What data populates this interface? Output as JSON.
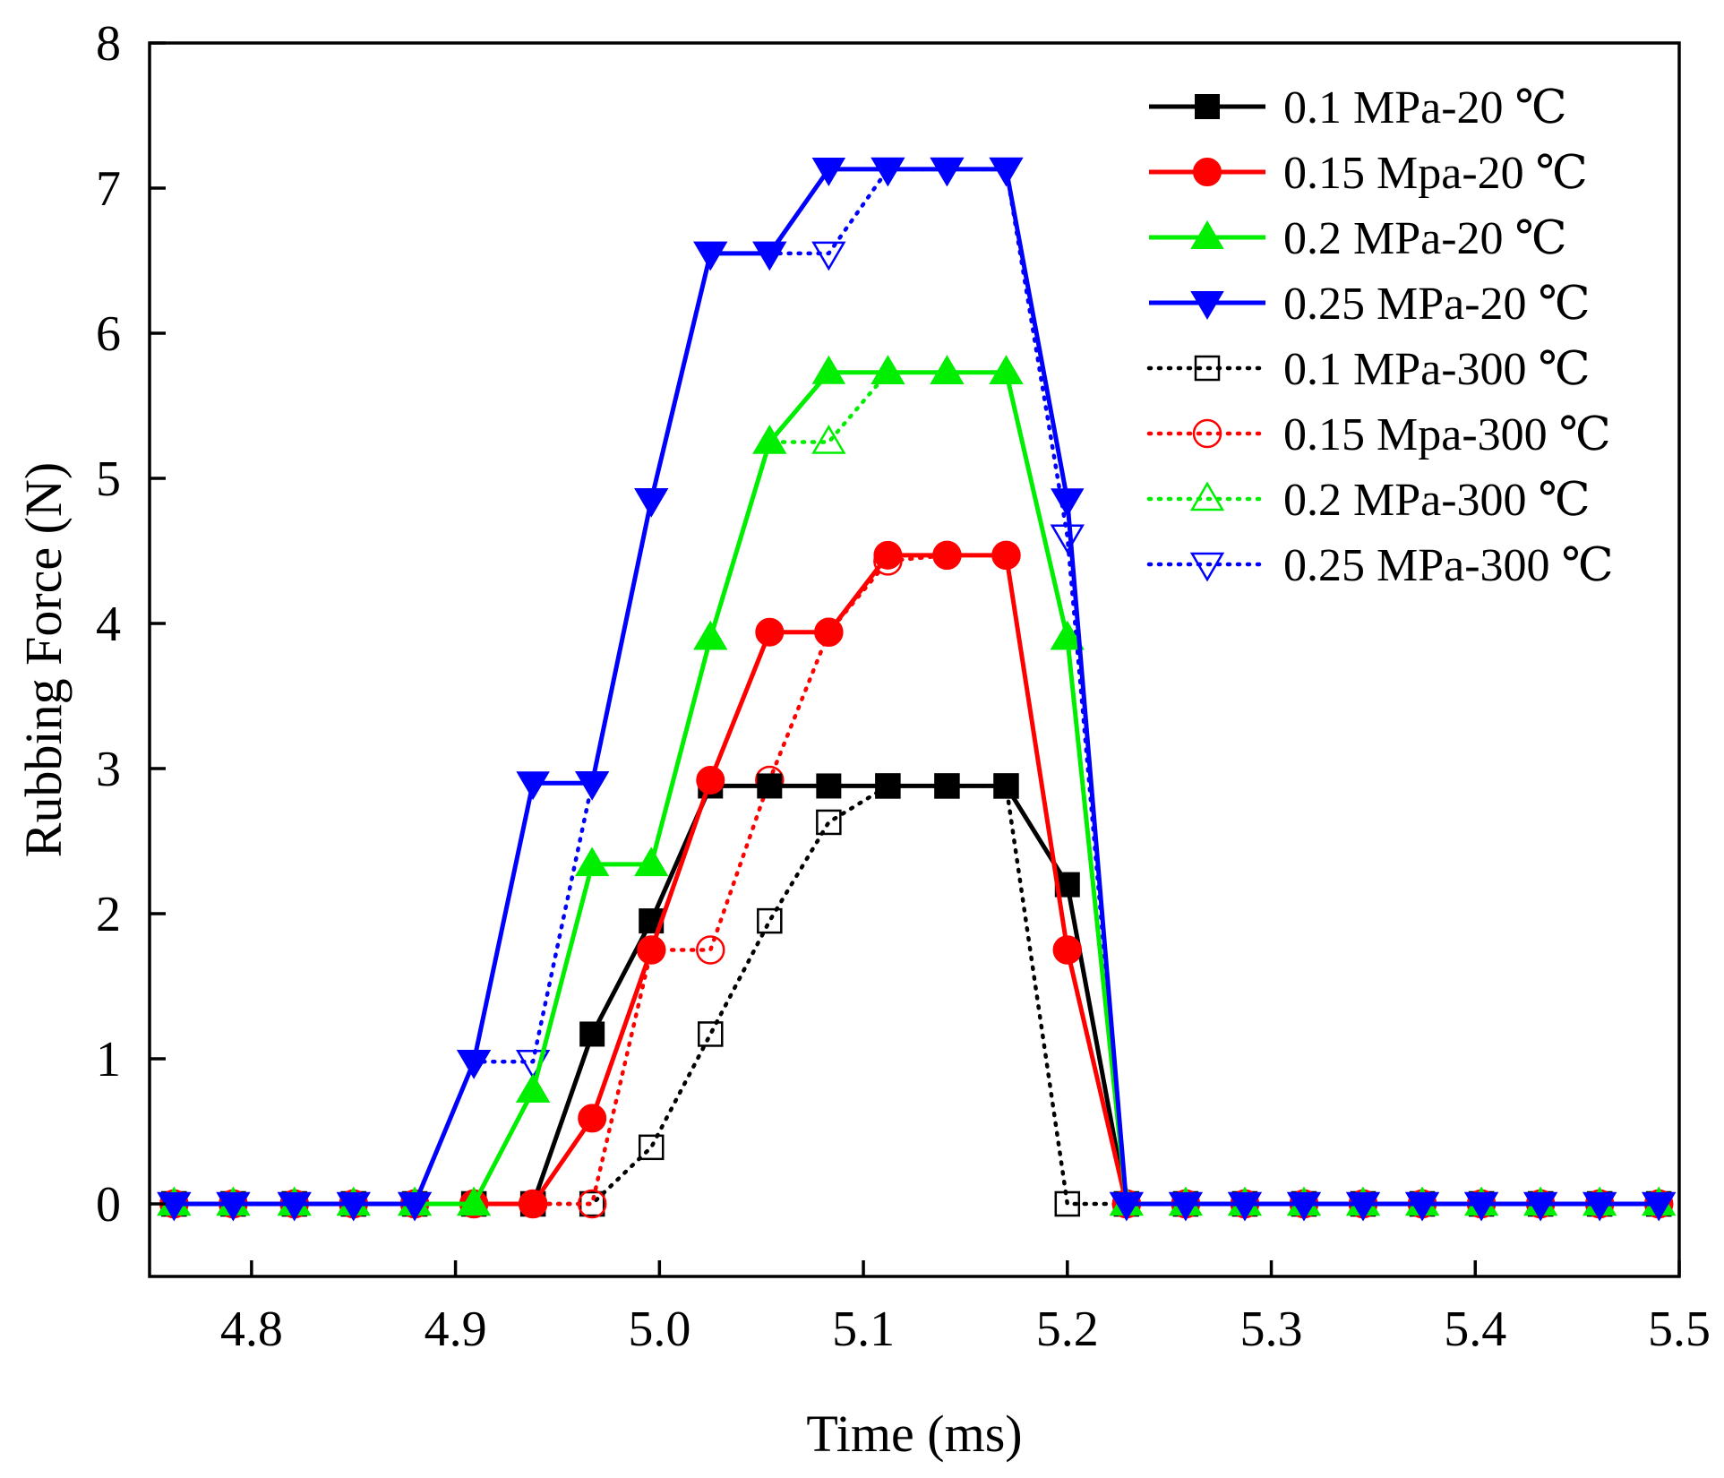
{
  "chart_data": {
    "type": "line",
    "title": "",
    "xlabel": "Time (ms)",
    "ylabel": "Rubbing Force (N)",
    "xlim": [
      4.75,
      5.5
    ],
    "ylim": [
      -0.5,
      8
    ],
    "xticks": [
      4.8,
      4.9,
      5.0,
      5.1,
      5.2,
      5.3,
      5.4,
      5.5
    ],
    "xtick_labels": [
      "4.8",
      "4.9",
      "5.0",
      "5.1",
      "5.2",
      "5.3",
      "5.4",
      "5.5"
    ],
    "yticks": [
      0,
      1,
      2,
      3,
      4,
      5,
      6,
      7,
      8
    ],
    "ytick_labels": [
      "0",
      "1",
      "2",
      "3",
      "4",
      "5",
      "6",
      "7",
      "8"
    ],
    "grid": false,
    "legend_position": "top-right",
    "x": [
      4.762,
      4.791,
      4.821,
      4.85,
      4.88,
      4.909,
      4.938,
      4.967,
      4.996,
      5.025,
      5.054,
      5.083,
      5.112,
      5.141,
      5.17,
      5.2,
      5.229,
      5.258,
      5.287,
      5.316,
      5.345,
      5.374,
      5.403,
      5.432,
      5.461,
      5.49
    ],
    "series": [
      {
        "name": "0.1 MPa-20 ℃",
        "color": "#000000",
        "style": "solid",
        "marker": "square",
        "filled": true,
        "values": [
          0,
          0,
          0,
          0,
          0,
          0,
          0,
          1.17,
          1.95,
          2.88,
          2.88,
          2.88,
          2.88,
          2.88,
          2.88,
          2.2,
          0,
          0,
          0,
          0,
          0,
          0,
          0,
          0,
          0,
          0
        ]
      },
      {
        "name": "0.15 Mpa-20 ℃",
        "color": "#ff0000",
        "style": "solid",
        "marker": "circle",
        "filled": true,
        "values": [
          0,
          0,
          0,
          0,
          0,
          0,
          0,
          0.59,
          1.75,
          2.92,
          3.94,
          3.94,
          4.47,
          4.47,
          4.47,
          1.75,
          0,
          0,
          0,
          0,
          0,
          0,
          0,
          0,
          0,
          0
        ]
      },
      {
        "name": "0.2 MPa-20 ℃",
        "color": "#00ee00",
        "style": "solid",
        "marker": "triangle-up",
        "filled": true,
        "values": [
          0,
          0,
          0,
          0,
          0,
          0,
          0.78,
          2.34,
          2.34,
          3.9,
          5.25,
          5.73,
          5.73,
          5.73,
          5.73,
          3.9,
          0,
          0,
          0,
          0,
          0,
          0,
          0,
          0,
          0,
          0
        ]
      },
      {
        "name": "0.25 MPa-20 ℃",
        "color": "#0000ff",
        "style": "solid",
        "marker": "triangle-down",
        "filled": true,
        "values": [
          0,
          0,
          0,
          0,
          0,
          0.98,
          2.9,
          2.9,
          4.85,
          6.55,
          6.55,
          7.13,
          7.13,
          7.13,
          7.13,
          4.85,
          0,
          0,
          0,
          0,
          0,
          0,
          0,
          0,
          0,
          0
        ]
      },
      {
        "name": "0.1 MPa-300 ℃",
        "color": "#000000",
        "style": "dotted",
        "marker": "square",
        "filled": false,
        "values": [
          0,
          0,
          0,
          0,
          0,
          0,
          0,
          0,
          0.39,
          1.17,
          1.95,
          2.63,
          2.88,
          2.88,
          2.88,
          0,
          0,
          0,
          0,
          0,
          0,
          0,
          0,
          0,
          0,
          0
        ]
      },
      {
        "name": "0.15 Mpa-300 ℃",
        "color": "#ff0000",
        "style": "dotted",
        "marker": "circle",
        "filled": false,
        "values": [
          0,
          0,
          0,
          0,
          0,
          0,
          0,
          0,
          1.75,
          1.75,
          2.92,
          3.94,
          4.43,
          4.47,
          4.47,
          1.75,
          0,
          0,
          0,
          0,
          0,
          0,
          0,
          0,
          0,
          0
        ]
      },
      {
        "name": "0.2 MPa-300 ℃",
        "color": "#00ee00",
        "style": "dotted",
        "marker": "triangle-up",
        "filled": false,
        "values": [
          0,
          0,
          0,
          0,
          0,
          0,
          0.78,
          2.34,
          2.34,
          3.9,
          5.25,
          5.25,
          5.73,
          5.73,
          5.73,
          3.9,
          0,
          0,
          0,
          0,
          0,
          0,
          0,
          0,
          0,
          0
        ]
      },
      {
        "name": "0.25 MPa-300 ℃",
        "color": "#0000ff",
        "style": "dotted",
        "marker": "triangle-down",
        "filled": false,
        "values": [
          0,
          0,
          0,
          0,
          0,
          0.98,
          0.98,
          2.9,
          4.85,
          6.55,
          6.55,
          6.55,
          7.13,
          7.13,
          7.13,
          4.6,
          0,
          0,
          0,
          0,
          0,
          0,
          0,
          0,
          0,
          0
        ]
      }
    ]
  }
}
